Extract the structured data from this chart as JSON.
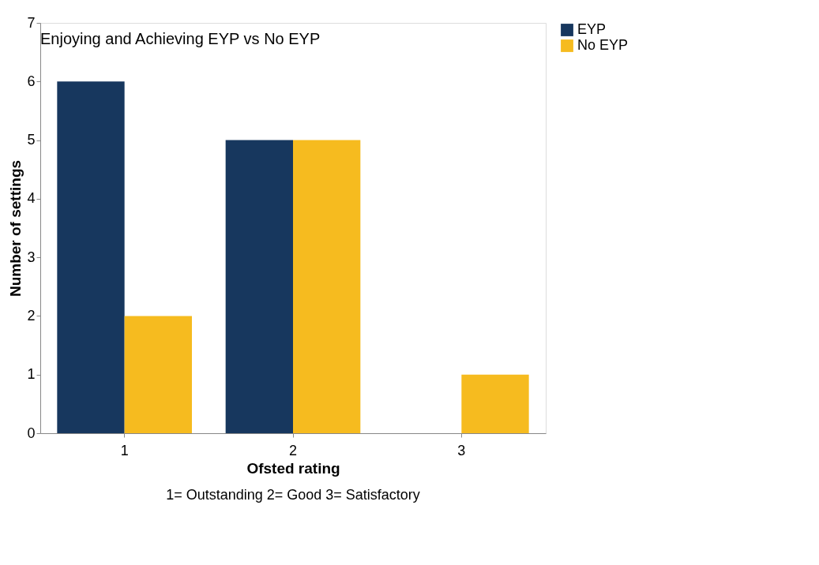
{
  "chart_data": {
    "type": "bar",
    "title": "Enjoying and Achieving EYP vs No EYP",
    "xlabel": "Ofsted rating",
    "ylabel": "Number of settings",
    "categories": [
      "1",
      "2",
      "3"
    ],
    "series": [
      {
        "name": "EYP",
        "color": "#17375e",
        "values": [
          6,
          5,
          0
        ]
      },
      {
        "name": "No EYP",
        "color": "#f6bb1f",
        "values": [
          2,
          5,
          1
        ]
      }
    ],
    "ylim": [
      0,
      7
    ],
    "yticks": [
      0,
      1,
      2,
      3,
      4,
      5,
      6,
      7
    ],
    "grid": false,
    "legend": "right",
    "annotations": [
      "1= Outstanding  2= Good  3= Satisfactory"
    ]
  }
}
